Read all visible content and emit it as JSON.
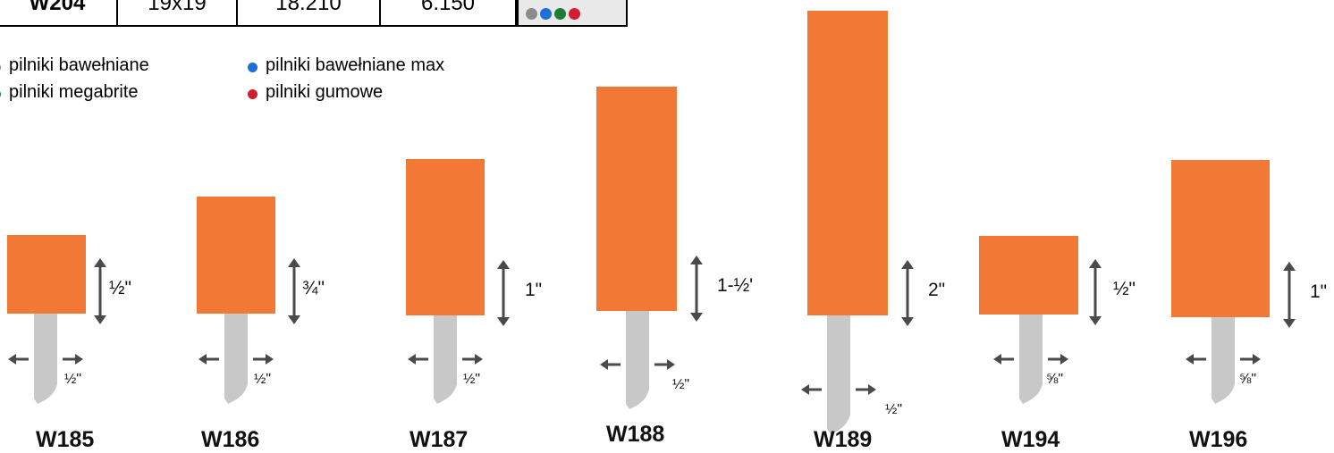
{
  "table_row": {
    "code": "W204",
    "size": "19x19",
    "price1": "18.210",
    "price2": "6.150",
    "dots": [
      "#8c8c8c",
      "#1f6fd6",
      "#1e7b3c",
      "#d21f2f"
    ]
  },
  "legend": [
    {
      "label": "pilniki bawełniane",
      "color": "#8c8c8c"
    },
    {
      "label": "pilniki bawełniane max",
      "color": "#1f6fd6"
    },
    {
      "label": "pilniki megabrite",
      "color": "#1e7b3c"
    },
    {
      "label": "pilniki gumowe",
      "color": "#d21f2f"
    }
  ],
  "products": [
    {
      "code": "W185",
      "length": "½\"",
      "shank": "½\""
    },
    {
      "code": "W186",
      "length": "¾\"",
      "shank": "½\""
    },
    {
      "code": "W187",
      "length": "1\"",
      "shank": "½\""
    },
    {
      "code": "W188",
      "length": "1-½'",
      "shank": "½\""
    },
    {
      "code": "W189",
      "length": "2\"",
      "shank": "½\""
    },
    {
      "code": "W194",
      "length": "½\"",
      "shank": "⅝\""
    },
    {
      "code": "W196",
      "length": "1\"",
      "shank": "⅝\""
    }
  ],
  "colors": {
    "head": "#f27935",
    "shank": "#c8c8c8",
    "arrow": "#4a4a4a"
  }
}
